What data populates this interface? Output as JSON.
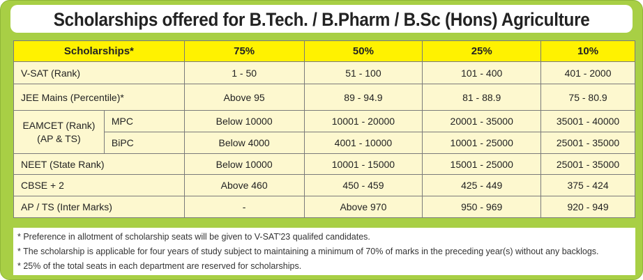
{
  "title": "Scholarships offered for B.Tech. / B.Pharm / B.Sc (Hons) Agriculture",
  "table": {
    "header": [
      "Scholarships*",
      "75%",
      "50%",
      "25%",
      "10%"
    ],
    "rows": [
      {
        "label": "V-SAT (Rank)",
        "cells": [
          "1 - 50",
          "51 - 100",
          "101 - 400",
          "401 - 2000"
        ]
      },
      {
        "label": "JEE Mains (Percentile)*",
        "cells": [
          "Above 95",
          "89 - 94.9",
          "81 - 88.9",
          "75 - 80.9"
        ]
      },
      {
        "group": [
          "EAMCET (Rank)",
          "(AP & TS)"
        ],
        "label": "MPC",
        "cells": [
          "Below 10000",
          "10001 - 20000",
          "20001 - 35000",
          "35001 - 40000"
        ]
      },
      {
        "label": "BiPC",
        "cells": [
          "Below 4000",
          "4001 - 10000",
          "10001 - 25000",
          "25001 - 35000"
        ]
      },
      {
        "label": "NEET (State Rank)",
        "cells": [
          "Below 10000",
          "10001 - 15000",
          "15001 - 25000",
          "25001 - 35000"
        ]
      },
      {
        "label": "CBSE + 2",
        "cells": [
          "Above 460",
          "450 - 459",
          "425 - 449",
          "375 - 424"
        ]
      },
      {
        "label": "AP / TS (Inter Marks)",
        "cells": [
          "-",
          "Above 970",
          "950 - 969",
          "920 - 949"
        ]
      }
    ]
  },
  "notes": [
    "*  Preference in allotment of scholarship seats will be given to V-SAT'23 qualifed candidates.",
    "*  The scholarship is applicable for four years of study subject to maintaining a minimum of 70% of marks in the preceding year(s) without any backlogs.",
    "*  25% of the total seats in each department are reserved for scholarships."
  ]
}
